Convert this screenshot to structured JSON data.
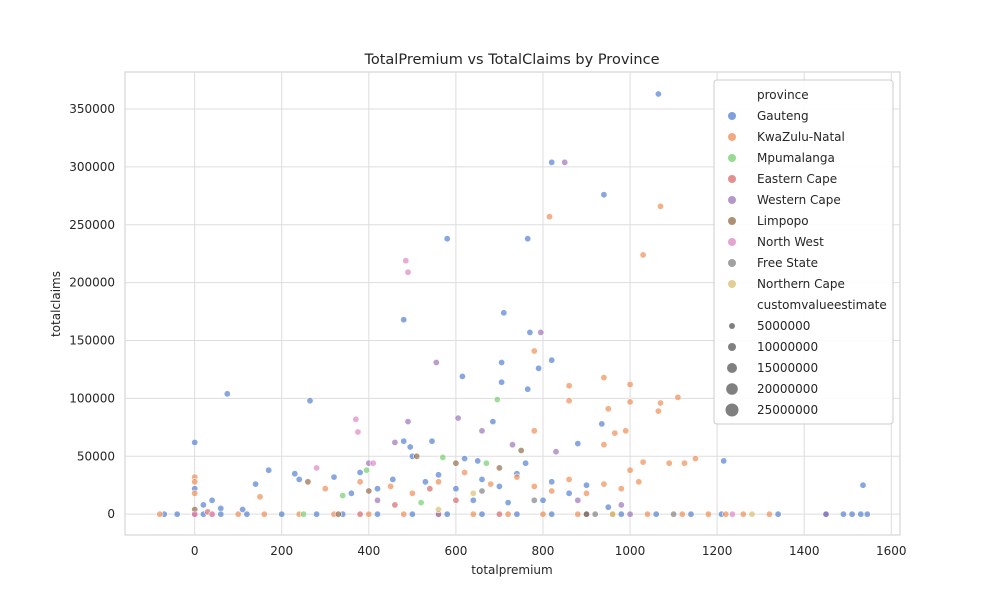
{
  "chart_data": {
    "type": "scatter",
    "title": "TotalPremium vs TotalClaims by Province",
    "xlabel": "totalpremium",
    "ylabel": "totalclaims",
    "xlim": [
      -160,
      1620
    ],
    "ylim": [
      -18000,
      382000
    ],
    "xticks": [
      0,
      200,
      400,
      600,
      800,
      1000,
      1200,
      1400,
      1600
    ],
    "yticks": [
      0,
      50000,
      100000,
      150000,
      200000,
      250000,
      300000,
      350000
    ],
    "grid": true,
    "style": "seaborn whitegrid",
    "legend": {
      "placement": "upper right",
      "hue_title": "province",
      "size_title": "customvalueestimate",
      "sizes": [
        {
          "label": "5000000",
          "value": 5000000
        },
        {
          "label": "10000000",
          "value": 10000000
        },
        {
          "label": "15000000",
          "value": 15000000
        },
        {
          "label": "20000000",
          "value": 20000000
        },
        {
          "label": "25000000",
          "value": 25000000
        }
      ]
    },
    "series": [
      {
        "name": "Gauteng",
        "color": "#4878d0",
        "points": [
          [
            1065,
            363000
          ],
          [
            820,
            304000
          ],
          [
            940,
            276000
          ],
          [
            765,
            238000
          ],
          [
            580,
            238000
          ],
          [
            710,
            174000
          ],
          [
            480,
            168000
          ],
          [
            770,
            157000
          ],
          [
            820,
            133000
          ],
          [
            705,
            131000
          ],
          [
            790,
            126000
          ],
          [
            615,
            119000
          ],
          [
            705,
            114000
          ],
          [
            765,
            108000
          ],
          [
            75,
            104000
          ],
          [
            265,
            98000
          ],
          [
            685,
            80000
          ],
          [
            480,
            63000
          ],
          [
            545,
            63000
          ],
          [
            0,
            62000
          ],
          [
            495,
            58000
          ],
          [
            500,
            50000
          ],
          [
            620,
            48000
          ],
          [
            650,
            46000
          ],
          [
            760,
            44000
          ],
          [
            1215,
            46000
          ],
          [
            880,
            61000
          ],
          [
            935,
            78000
          ],
          [
            1535,
            25000
          ],
          [
            0,
            22000
          ],
          [
            170,
            38000
          ],
          [
            230,
            35000
          ],
          [
            240,
            30000
          ],
          [
            320,
            32000
          ],
          [
            380,
            36000
          ],
          [
            420,
            22000
          ],
          [
            455,
            30000
          ],
          [
            530,
            28000
          ],
          [
            560,
            34000
          ],
          [
            600,
            22000
          ],
          [
            660,
            30000
          ],
          [
            700,
            24000
          ],
          [
            740,
            35000
          ],
          [
            820,
            28000
          ],
          [
            860,
            18000
          ],
          [
            900,
            25000
          ],
          [
            20,
            8000
          ],
          [
            40,
            12000
          ],
          [
            60,
            5000
          ],
          [
            110,
            4000
          ],
          [
            140,
            26000
          ],
          [
            360,
            18000
          ],
          [
            640,
            12000
          ],
          [
            720,
            10000
          ],
          [
            800,
            12000
          ],
          [
            950,
            6000
          ],
          [
            0,
            0
          ],
          [
            20,
            0
          ],
          [
            60,
            0
          ],
          [
            120,
            0
          ],
          [
            200,
            0
          ],
          [
            280,
            0
          ],
          [
            340,
            0
          ],
          [
            420,
            0
          ],
          [
            500,
            0
          ],
          [
            580,
            0
          ],
          [
            660,
            0
          ],
          [
            740,
            0
          ],
          [
            820,
            0
          ],
          [
            900,
            0
          ],
          [
            980,
            0
          ],
          [
            1060,
            0
          ],
          [
            1140,
            0
          ],
          [
            1210,
            0
          ],
          [
            1340,
            0
          ],
          [
            1450,
            0
          ],
          [
            1490,
            0
          ],
          [
            1510,
            0
          ],
          [
            1530,
            0
          ],
          [
            1545,
            0
          ],
          [
            -40,
            0
          ],
          [
            -70,
            0
          ]
        ]
      },
      {
        "name": "KwaZulu-Natal",
        "color": "#ee854a",
        "points": [
          [
            1070,
            266000
          ],
          [
            815,
            257000
          ],
          [
            1030,
            224000
          ],
          [
            780,
            141000
          ],
          [
            940,
            118000
          ],
          [
            1000,
            112000
          ],
          [
            860,
            111000
          ],
          [
            1110,
            101000
          ],
          [
            860,
            98000
          ],
          [
            1000,
            97000
          ],
          [
            1070,
            96000
          ],
          [
            1065,
            89000
          ],
          [
            950,
            91000
          ],
          [
            780,
            72000
          ],
          [
            990,
            72000
          ],
          [
            965,
            70000
          ],
          [
            940,
            60000
          ],
          [
            1030,
            45000
          ],
          [
            1090,
            44000
          ],
          [
            1125,
            44000
          ],
          [
            1150,
            48000
          ],
          [
            1000,
            38000
          ],
          [
            1020,
            28000
          ],
          [
            980,
            22000
          ],
          [
            940,
            26000
          ],
          [
            0,
            32000
          ],
          [
            0,
            28000
          ],
          [
            0,
            18000
          ],
          [
            150,
            15000
          ],
          [
            300,
            22000
          ],
          [
            380,
            28000
          ],
          [
            450,
            24000
          ],
          [
            500,
            18000
          ],
          [
            560,
            28000
          ],
          [
            620,
            36000
          ],
          [
            680,
            26000
          ],
          [
            740,
            32000
          ],
          [
            780,
            24000
          ],
          [
            820,
            20000
          ],
          [
            860,
            30000
          ],
          [
            900,
            18000
          ],
          [
            -80,
            0
          ],
          [
            0,
            0
          ],
          [
            40,
            0
          ],
          [
            100,
            0
          ],
          [
            160,
            0
          ],
          [
            240,
            0
          ],
          [
            320,
            0
          ],
          [
            400,
            0
          ],
          [
            480,
            0
          ],
          [
            560,
            0
          ],
          [
            640,
            0
          ],
          [
            720,
            0
          ],
          [
            800,
            0
          ],
          [
            880,
            0
          ],
          [
            960,
            0
          ],
          [
            1040,
            0
          ],
          [
            1120,
            0
          ],
          [
            1180,
            0
          ],
          [
            1220,
            0
          ],
          [
            1260,
            0
          ],
          [
            1320,
            0
          ]
        ]
      },
      {
        "name": "Mpumalanga",
        "color": "#6acc64",
        "points": [
          [
            695,
            99000
          ],
          [
            570,
            49000
          ],
          [
            395,
            38000
          ],
          [
            670,
            44000
          ],
          [
            340,
            16000
          ],
          [
            520,
            10000
          ],
          [
            250,
            0
          ]
        ]
      },
      {
        "name": "Eastern Cape",
        "color": "#d65f5f",
        "points": [
          [
            540,
            22000
          ],
          [
            600,
            12000
          ],
          [
            460,
            8000
          ],
          [
            30,
            2000
          ],
          [
            380,
            0
          ],
          [
            700,
            0
          ]
        ]
      },
      {
        "name": "Western Cape",
        "color": "#956cb4",
        "points": [
          [
            850,
            304000
          ],
          [
            795,
            157000
          ],
          [
            555,
            131000
          ],
          [
            605,
            83000
          ],
          [
            490,
            80000
          ],
          [
            660,
            72000
          ],
          [
            730,
            60000
          ],
          [
            830,
            54000
          ],
          [
            460,
            62000
          ],
          [
            400,
            44000
          ],
          [
            420,
            12000
          ],
          [
            880,
            12000
          ],
          [
            980,
            8000
          ],
          [
            1450,
            0
          ],
          [
            1000,
            0
          ],
          [
            560,
            0
          ]
        ]
      },
      {
        "name": "Limpopo",
        "color": "#8c613c",
        "points": [
          [
            510,
            50000
          ],
          [
            600,
            44000
          ],
          [
            700,
            40000
          ],
          [
            750,
            55000
          ],
          [
            260,
            28000
          ],
          [
            400,
            20000
          ],
          [
            0,
            4000
          ],
          [
            330,
            0
          ],
          [
            900,
            0
          ]
        ]
      },
      {
        "name": "North West",
        "color": "#dc7ec0",
        "points": [
          [
            485,
            219000
          ],
          [
            490,
            209000
          ],
          [
            370,
            82000
          ],
          [
            375,
            71000
          ],
          [
            410,
            44000
          ],
          [
            280,
            40000
          ],
          [
            0,
            0
          ],
          [
            40,
            0
          ],
          [
            1235,
            0
          ]
        ]
      },
      {
        "name": "Free State",
        "color": "#797979",
        "points": [
          [
            660,
            20000
          ],
          [
            780,
            12000
          ],
          [
            920,
            0
          ],
          [
            1100,
            0
          ]
        ]
      },
      {
        "name": "Northern Cape",
        "color": "#d5bb67",
        "points": [
          [
            640,
            18000
          ],
          [
            560,
            4000
          ],
          [
            960,
            0
          ],
          [
            1280,
            0
          ]
        ]
      }
    ]
  }
}
